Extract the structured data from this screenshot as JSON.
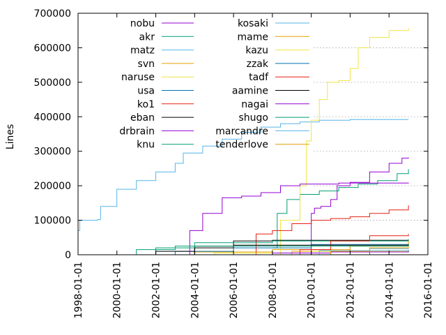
{
  "chart_data": {
    "type": "line",
    "title": "",
    "xlabel": "",
    "ylabel": "Lines",
    "xlim": [
      "1998-01-01",
      "2016-01-01"
    ],
    "ylim": [
      0,
      700000
    ],
    "grid": "dotted horizontal at y ticks, right portion of plot",
    "legend_position": "top-left, two columns",
    "x_tick_labels": [
      "1998-01-01",
      "2000-01-01",
      "2002-01-01",
      "2004-01-01",
      "2006-01-01",
      "2008-01-01",
      "2010-01-01",
      "2012-01-01",
      "2014-01-01",
      "2016-01-01"
    ],
    "y_tick_labels": [
      "0",
      "100000",
      "200000",
      "300000",
      "400000",
      "500000",
      "600000",
      "700000"
    ],
    "y_ticks": [
      0,
      100000,
      200000,
      300000,
      400000,
      500000,
      600000,
      700000
    ],
    "series": [
      {
        "name": "nobu",
        "color": "#9400d3",
        "points": [
          [
            "2009-09-01",
            0
          ],
          [
            "2010-01-01",
            120000
          ],
          [
            "2010-03-01",
            135000
          ],
          [
            "2010-07-01",
            140000
          ],
          [
            "2011-01-01",
            160000
          ],
          [
            "2011-05-01",
            200000
          ],
          [
            "2012-01-01",
            210000
          ],
          [
            "2013-01-01",
            240000
          ],
          [
            "2014-01-01",
            265000
          ],
          [
            "2014-09-01",
            280000
          ],
          [
            "2015-01-01",
            282000
          ]
        ]
      },
      {
        "name": "akr",
        "color": "#009e73",
        "points": [
          [
            "2008-01-01",
            20000
          ],
          [
            "2008-04-01",
            120000
          ],
          [
            "2008-10-01",
            160000
          ],
          [
            "2009-06-01",
            175000
          ],
          [
            "2010-06-01",
            185000
          ],
          [
            "2011-06-01",
            195000
          ],
          [
            "2012-06-01",
            205000
          ],
          [
            "2013-06-01",
            215000
          ],
          [
            "2014-06-01",
            235000
          ],
          [
            "2015-01-01",
            248000
          ]
        ]
      },
      {
        "name": "matz",
        "color": "#56b4e9",
        "points": [
          [
            "1998-01-01",
            70000
          ],
          [
            "1998-02-01",
            100000
          ],
          [
            "1999-01-01",
            102000
          ],
          [
            "1999-03-01",
            140000
          ],
          [
            "2000-01-01",
            190000
          ],
          [
            "2001-01-01",
            215000
          ],
          [
            "2002-01-01",
            240000
          ],
          [
            "2003-01-01",
            265000
          ],
          [
            "2003-06-01",
            295000
          ],
          [
            "2004-06-01",
            315000
          ],
          [
            "2005-06-01",
            335000
          ],
          [
            "2006-06-01",
            355000
          ],
          [
            "2007-06-01",
            370000
          ],
          [
            "2008-06-01",
            380000
          ],
          [
            "2009-06-01",
            385000
          ],
          [
            "2010-06-01",
            390000
          ],
          [
            "2012-01-01",
            392000
          ],
          [
            "2015-01-01",
            392000
          ]
        ]
      },
      {
        "name": "svn",
        "color": "#e69f00",
        "points": [
          [
            "2002-01-01",
            0
          ],
          [
            "2004-01-01",
            8000
          ],
          [
            "2008-01-01",
            15000
          ],
          [
            "2012-01-01",
            25000
          ],
          [
            "2015-01-01",
            30000
          ]
        ]
      },
      {
        "name": "naruse",
        "color": "#f0e442",
        "points": [
          [
            "2007-06-01",
            0
          ],
          [
            "2008-06-01",
            100000
          ],
          [
            "2009-06-01",
            200000
          ],
          [
            "2009-10-01",
            330000
          ],
          [
            "2010-01-01",
            390000
          ],
          [
            "2010-06-01",
            450000
          ],
          [
            "2010-11-01",
            500000
          ],
          [
            "2011-06-01",
            505000
          ],
          [
            "2012-01-01",
            540000
          ],
          [
            "2012-06-01",
            600000
          ],
          [
            "2013-01-01",
            630000
          ],
          [
            "2014-01-01",
            650000
          ],
          [
            "2015-01-01",
            657000
          ]
        ]
      },
      {
        "name": "usa",
        "color": "#0072b2",
        "points": [
          [
            "2001-01-01",
            0
          ],
          [
            "2003-01-01",
            10000
          ],
          [
            "2006-01-01",
            20000
          ],
          [
            "2010-01-01",
            30000
          ],
          [
            "2015-01-01",
            35000
          ]
        ]
      },
      {
        "name": "ko1",
        "color": "#e51e10",
        "points": [
          [
            "2007-01-01",
            0
          ],
          [
            "2007-03-01",
            60000
          ],
          [
            "2008-01-01",
            70000
          ],
          [
            "2009-01-01",
            90000
          ],
          [
            "2010-01-01",
            100000
          ],
          [
            "2011-01-01",
            105000
          ],
          [
            "2012-01-01",
            110000
          ],
          [
            "2013-01-01",
            120000
          ],
          [
            "2014-01-01",
            130000
          ],
          [
            "2015-01-01",
            143000
          ]
        ]
      },
      {
        "name": "eban",
        "color": "#000000",
        "points": [
          [
            "2000-01-01",
            0
          ],
          [
            "2002-01-01",
            10000
          ],
          [
            "2004-01-01",
            25000
          ],
          [
            "2006-01-01",
            40000
          ],
          [
            "2008-01-01",
            42000
          ],
          [
            "2015-01-01",
            43000
          ]
        ]
      },
      {
        "name": "drbrain",
        "color": "#9400d3",
        "points": [
          [
            "2003-06-01",
            0
          ],
          [
            "2003-10-01",
            70000
          ],
          [
            "2004-06-01",
            120000
          ],
          [
            "2005-06-01",
            165000
          ],
          [
            "2006-06-01",
            170000
          ],
          [
            "2007-06-01",
            180000
          ],
          [
            "2008-06-01",
            200000
          ],
          [
            "2009-06-01",
            205000
          ],
          [
            "2011-06-01",
            208000
          ],
          [
            "2015-01-01",
            209000
          ]
        ]
      },
      {
        "name": "knu",
        "color": "#009e73",
        "points": [
          [
            "2000-06-01",
            0
          ],
          [
            "2002-01-01",
            20000
          ],
          [
            "2004-01-01",
            35000
          ],
          [
            "2008-01-01",
            40000
          ],
          [
            "2015-01-01",
            45000
          ]
        ]
      },
      {
        "name": "kosaki",
        "color": "#56b4e9",
        "points": [
          [
            "2010-01-01",
            0
          ],
          [
            "2011-01-01",
            8000
          ],
          [
            "2013-01-01",
            12000
          ],
          [
            "2015-01-01",
            15000
          ]
        ]
      },
      {
        "name": "mame",
        "color": "#e69f00",
        "points": [
          [
            "2007-01-01",
            0
          ],
          [
            "2009-01-01",
            10000
          ],
          [
            "2012-01-01",
            25000
          ],
          [
            "2015-01-01",
            40000
          ]
        ]
      },
      {
        "name": "kazu",
        "color": "#f0e442",
        "points": [
          [
            "2002-01-01",
            0
          ],
          [
            "2005-01-01",
            5000
          ],
          [
            "2010-01-01",
            10000
          ],
          [
            "2015-01-01",
            12000
          ]
        ]
      },
      {
        "name": "zzak",
        "color": "#0072b2",
        "points": [
          [
            "2011-01-01",
            0
          ],
          [
            "2013-01-01",
            8000
          ],
          [
            "2015-01-01",
            12000
          ]
        ]
      },
      {
        "name": "tadf",
        "color": "#e51e10",
        "points": [
          [
            "2008-01-01",
            0
          ],
          [
            "2009-06-01",
            15000
          ],
          [
            "2011-01-01",
            40000
          ],
          [
            "2013-01-01",
            55000
          ],
          [
            "2015-01-01",
            60000
          ]
        ]
      },
      {
        "name": "aamine",
        "color": "#000000",
        "points": [
          [
            "2002-01-01",
            0
          ],
          [
            "2004-01-01",
            20000
          ],
          [
            "2006-01-01",
            28000
          ],
          [
            "2015-01-01",
            30000
          ]
        ]
      },
      {
        "name": "nagai",
        "color": "#9400d3",
        "points": [
          [
            "2006-01-01",
            0
          ],
          [
            "2008-01-01",
            5000
          ],
          [
            "2011-01-01",
            8000
          ],
          [
            "2015-01-01",
            10000
          ]
        ]
      },
      {
        "name": "shugo",
        "color": "#009e73",
        "points": [
          [
            "1999-01-01",
            0
          ],
          [
            "2001-01-01",
            15000
          ],
          [
            "2003-01-01",
            25000
          ],
          [
            "2015-01-01",
            28000
          ]
        ]
      },
      {
        "name": "marcandre",
        "color": "#56b4e9",
        "points": [
          [
            "2008-06-01",
            0
          ],
          [
            "2010-06-01",
            12000
          ],
          [
            "2013-01-01",
            18000
          ],
          [
            "2015-01-01",
            20000
          ]
        ]
      },
      {
        "name": "tenderlove",
        "color": "#e69f00",
        "points": [
          [
            "2009-01-01",
            0
          ],
          [
            "2011-01-01",
            10000
          ],
          [
            "2013-01-01",
            20000
          ],
          [
            "2015-01-01",
            22000
          ]
        ]
      }
    ]
  }
}
